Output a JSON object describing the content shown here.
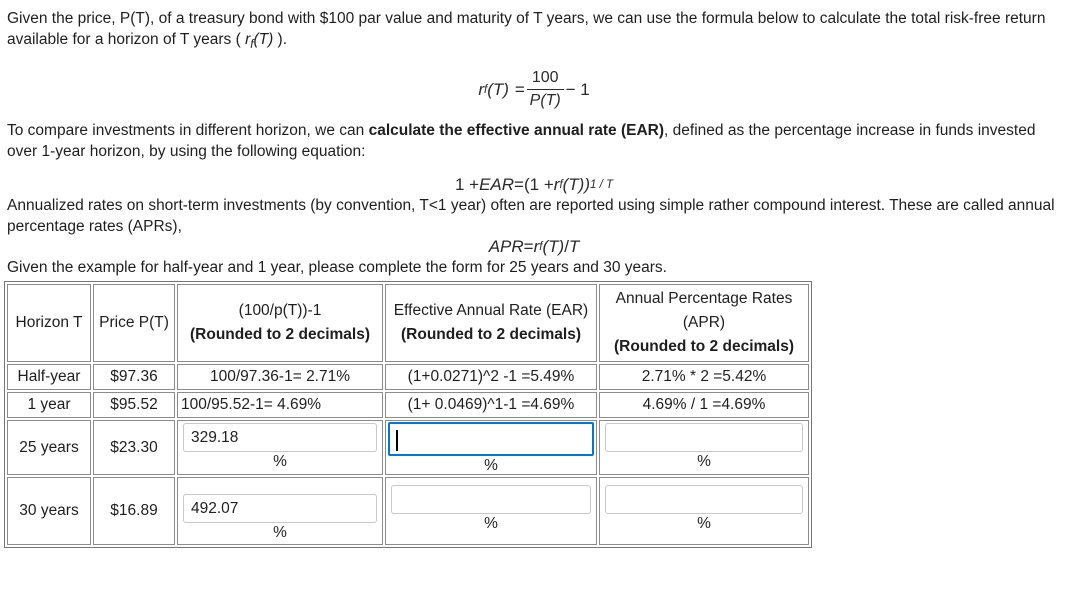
{
  "colors": {
    "focus_blue": "#0078d7",
    "table_outer_border": "#767676",
    "table_cell_border": "#8c8c8c",
    "input_border": "#c9c9c9"
  },
  "intro": {
    "pre": "Given the price, P(T), of a treasury bond with $100 par value and maturity of T years, we can use the formula below to calculate the total risk-free return available for a horizon of T years ( ",
    "math_r": "r",
    "math_sub": "f",
    "math_arg": "(T)",
    "post": " )."
  },
  "formula1": {
    "r": "r",
    "sub": "f",
    "arg": "(T)",
    "eq": "=",
    "numerator": "100",
    "denominator": "P(T)",
    "tail": "− 1"
  },
  "ear_paragraph": {
    "pre": "To compare investments in different horizon, we can ",
    "bold": "calculate the effective annual rate (EAR)",
    "post": ", defined as the percentage increase in funds invested over 1-year horizon, by using the following equation:"
  },
  "formula2": {
    "lead": "1 +",
    "ear": "EAR",
    "eq": "=",
    "open": "(1 +",
    "r": "r",
    "sub": "f",
    "arg": "(T))",
    "exp": "1 / T"
  },
  "apr_paragraph": "Annualized rates on short-term investments (by convention, T<1 year) often are reported using simple rather compound interest. These are called annual percentage rates (APRs),",
  "formula3": {
    "lhs": "APR",
    "eq": "=",
    "r": "r",
    "sub": "f",
    "arg": "(T)",
    "slash": "/",
    "t": "T"
  },
  "task_paragraph": "Given the example for half-year and 1 year, please complete the form for 25 years and 30 years.",
  "table": {
    "percent": "%",
    "headers": {
      "horizon": "Horizon T",
      "price": "Price P(T)",
      "col3_line1": "(100/p(T))-1",
      "col3_line2": "(Rounded to 2 decimals)",
      "col4_line1": "Effective Annual Rate (EAR)",
      "col4_line2": "(Rounded to 2 decimals)",
      "col5_line1": "Annual Percentage Rates",
      "col5_line2": "(APR)",
      "col5_line3": "(Rounded to 2 decimals)"
    },
    "example_rows": [
      {
        "horizon": "Half-year",
        "price": "$97.36",
        "total_return": "100/97.36-1= 2.71%",
        "ear": "(1+0.0271)^2 -1 =5.49%",
        "apr": "2.71% * 2 =5.42%"
      },
      {
        "horizon": "1 year",
        "price": "$95.52",
        "total_return": "100/95.52-1= 4.69%",
        "ear": "(1+ 0.0469)^1-1 =4.69%",
        "apr": "4.69% / 1 =4.69%"
      }
    ],
    "input_rows": [
      {
        "horizon": "25 years",
        "price": "$23.30",
        "total_return_input": "329.18",
        "ear_input": "",
        "apr_input": ""
      },
      {
        "horizon": "30 years",
        "price": "$16.89",
        "total_return_input": "492.07",
        "ear_input": "",
        "apr_input": ""
      }
    ]
  }
}
